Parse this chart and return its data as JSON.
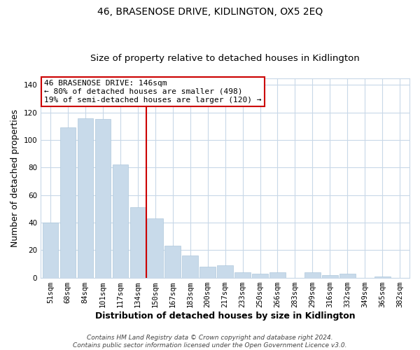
{
  "title": "46, BRASENOSE DRIVE, KIDLINGTON, OX5 2EQ",
  "subtitle": "Size of property relative to detached houses in Kidlington",
  "xlabel": "Distribution of detached houses by size in Kidlington",
  "ylabel": "Number of detached properties",
  "bar_labels": [
    "51sqm",
    "68sqm",
    "84sqm",
    "101sqm",
    "117sqm",
    "134sqm",
    "150sqm",
    "167sqm",
    "183sqm",
    "200sqm",
    "217sqm",
    "233sqm",
    "250sqm",
    "266sqm",
    "283sqm",
    "299sqm",
    "316sqm",
    "332sqm",
    "349sqm",
    "365sqm",
    "382sqm"
  ],
  "bar_values": [
    40,
    109,
    116,
    115,
    82,
    51,
    43,
    23,
    16,
    8,
    9,
    4,
    3,
    4,
    0,
    4,
    2,
    3,
    0,
    1,
    0
  ],
  "bar_color": "#c8daea",
  "bar_edge_color": "#aec8dc",
  "red_line_x": 5.5,
  "red_line_color": "#cc0000",
  "ylim_max": 145,
  "yticks": [
    0,
    20,
    40,
    60,
    80,
    100,
    120,
    140
  ],
  "annotation_title": "46 BRASENOSE DRIVE: 146sqm",
  "annotation_line1": "← 80% of detached houses are smaller (498)",
  "annotation_line2": "19% of semi-detached houses are larger (120) →",
  "annotation_box_facecolor": "#ffffff",
  "annotation_box_edgecolor": "#cc0000",
  "footer_line1": "Contains HM Land Registry data © Crown copyright and database right 2024.",
  "footer_line2": "Contains public sector information licensed under the Open Government Licence v3.0.",
  "background_color": "#ffffff",
  "grid_color": "#c8d8e8",
  "title_fontsize": 10,
  "subtitle_fontsize": 9.5,
  "axis_label_fontsize": 9,
  "tick_fontsize": 7.5,
  "annotation_fontsize": 8,
  "footer_fontsize": 6.5
}
